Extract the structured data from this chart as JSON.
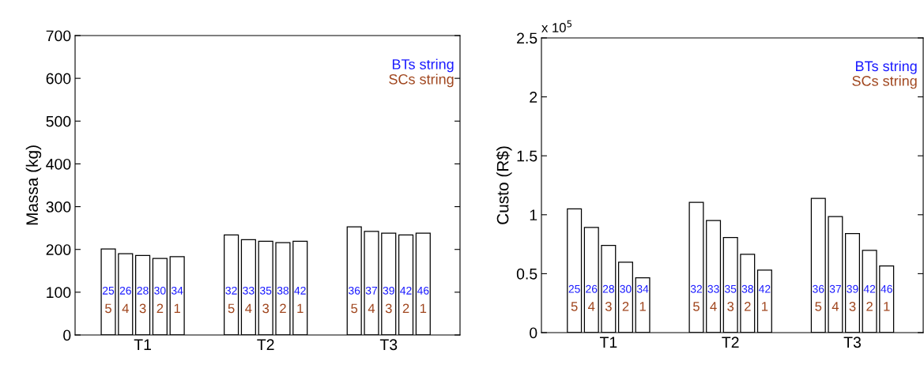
{
  "chart_data": [
    {
      "type": "bar",
      "ylabel": "Massa (kg)",
      "categories": [
        "T1",
        "T2",
        "T3"
      ],
      "ylim": [
        0,
        700
      ],
      "yticks": [
        0,
        100,
        200,
        300,
        400,
        500,
        600,
        700
      ],
      "grid": false,
      "legend": false,
      "series": [
        {
          "color": "#ffffff",
          "values": [
            201,
            234,
            253
          ]
        },
        {
          "color": "#ffffff",
          "values": [
            190,
            223,
            242
          ]
        },
        {
          "color": "#ffffff",
          "values": [
            186,
            219,
            238
          ]
        },
        {
          "color": "#ffffff",
          "values": [
            179,
            216,
            234
          ]
        },
        {
          "color": "#ffffff",
          "values": [
            183,
            219,
            238
          ]
        }
      ],
      "annotations": [
        "BTs string",
        "SCs string",
        "25",
        "5",
        "26",
        "4",
        "28",
        "3",
        "30",
        "2",
        "34",
        "1",
        "32",
        "5",
        "33",
        "4",
        "35",
        "3",
        "38",
        "2",
        "42",
        "1",
        "36",
        "5",
        "37",
        "4",
        "39",
        "3",
        "42",
        "2",
        "46",
        "1"
      ]
    },
    {
      "type": "bar",
      "ylabel": "Custo (R$)",
      "categories": [
        "T1",
        "T2",
        "T3"
      ],
      "ylim": [
        0,
        2.5
      ],
      "yticks": [
        0,
        0.5,
        1,
        1.5,
        2,
        2.5
      ],
      "grid": false,
      "legend": false,
      "series": [
        {
          "color": "#ffffff",
          "values": [
            1.049,
            1.105,
            1.138
          ]
        },
        {
          "color": "#ffffff",
          "values": [
            0.893,
            0.951,
            0.984
          ]
        },
        {
          "color": "#ffffff",
          "values": [
            0.74,
            0.807,
            0.84
          ]
        },
        {
          "color": "#ffffff",
          "values": [
            0.598,
            0.664,
            0.698
          ]
        },
        {
          "color": "#ffffff",
          "values": [
            0.465,
            0.531,
            0.565
          ]
        }
      ],
      "annotations": [
        "BTs string",
        "SCs string",
        "x 10$^{5}$",
        "25",
        "5",
        "26",
        "4",
        "28",
        "3",
        "30",
        "2",
        "34",
        "1",
        "32",
        "5",
        "33",
        "4",
        "35",
        "3",
        "38",
        "2",
        "42",
        "1",
        "36",
        "5",
        "37",
        "4",
        "39",
        "3",
        "42",
        "2",
        "46",
        "1"
      ]
    }
  ]
}
